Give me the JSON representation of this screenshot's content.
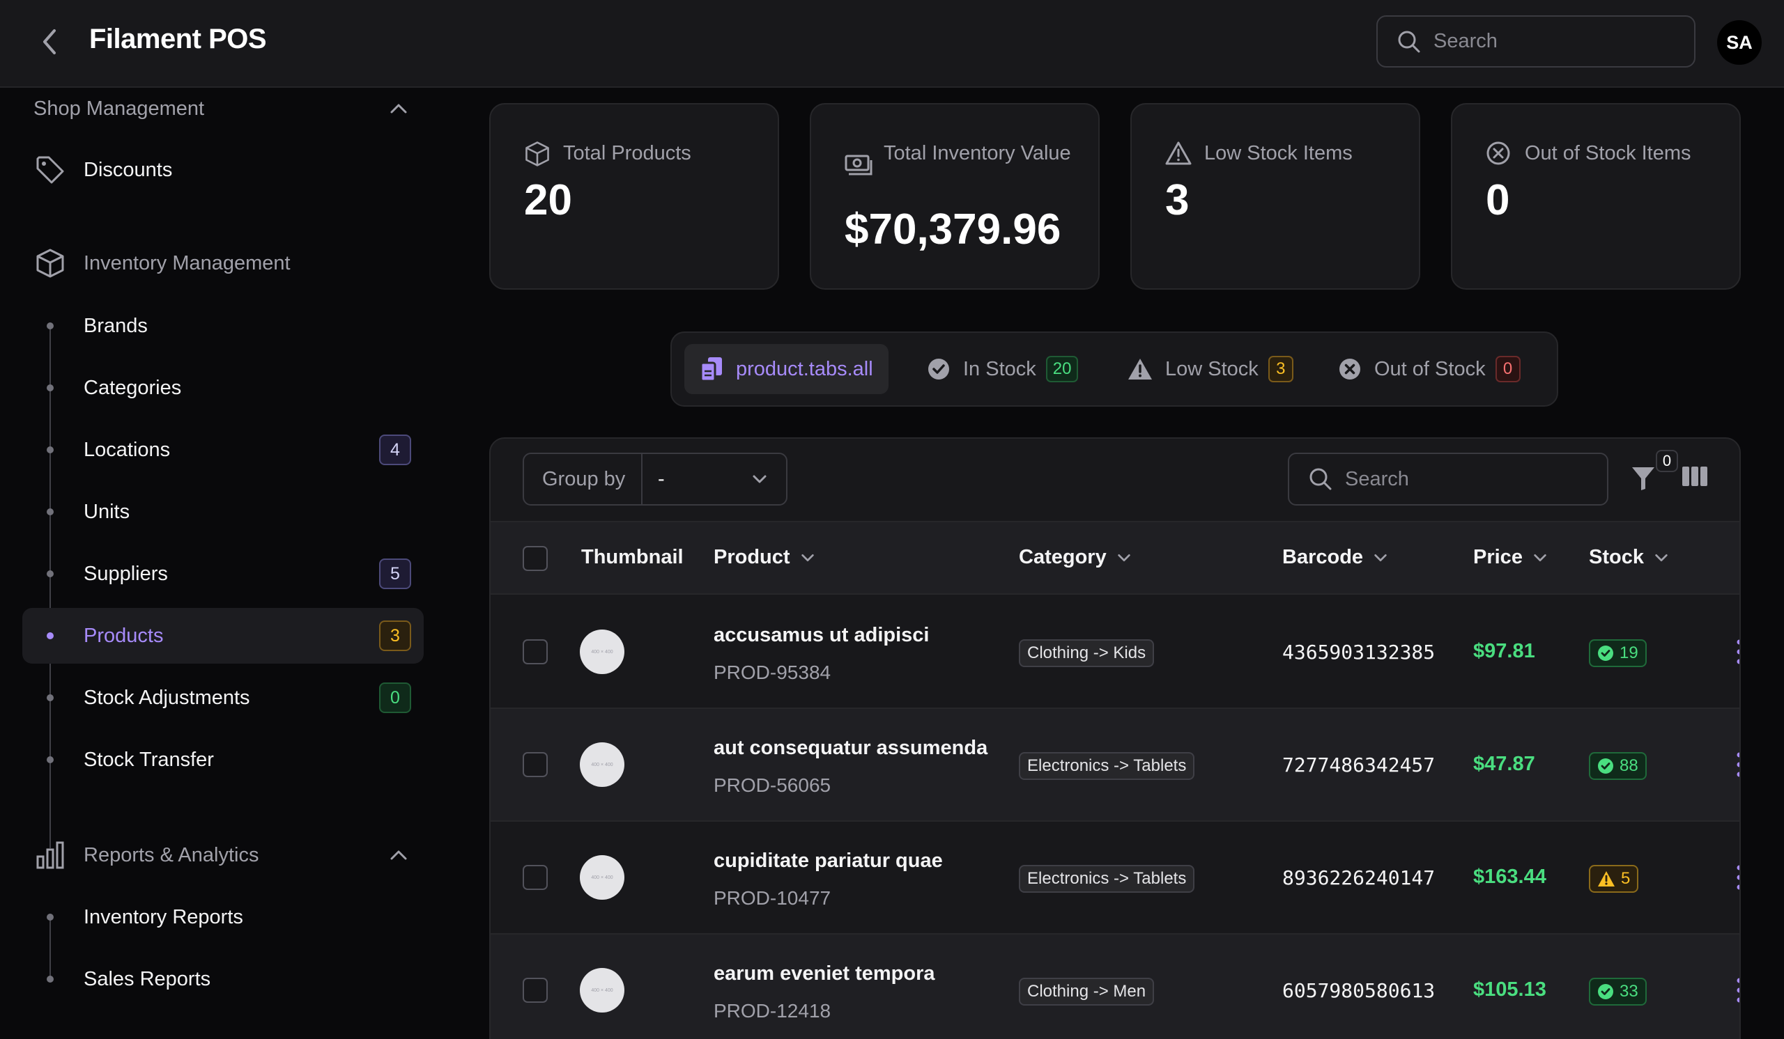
{
  "header": {
    "title": "Filament POS",
    "search_placeholder": "Search",
    "avatar_initials": "SA"
  },
  "sidebar": {
    "shop_group": "Shop Management",
    "discounts": "Discounts",
    "inventory_group": "Inventory Management",
    "items": [
      {
        "label": "Brands"
      },
      {
        "label": "Categories"
      },
      {
        "label": "Locations",
        "badge": "4"
      },
      {
        "label": "Units"
      },
      {
        "label": "Suppliers",
        "badge": "5"
      },
      {
        "label": "Products",
        "badge": "3"
      },
      {
        "label": "Stock Adjustments",
        "badge": "0"
      },
      {
        "label": "Stock Transfer"
      }
    ],
    "reports_group": "Reports & Analytics",
    "reports_items": [
      {
        "label": "Inventory Reports"
      },
      {
        "label": "Sales Reports"
      }
    ]
  },
  "stats": [
    {
      "label": "Total Products",
      "value": "20"
    },
    {
      "label": "Total Inventory Value",
      "value": "$70,379.96"
    },
    {
      "label": "Low Stock Items",
      "value": "3"
    },
    {
      "label": "Out of Stock Items",
      "value": "0"
    }
  ],
  "tabs": [
    {
      "label": "product.tabs.all"
    },
    {
      "label": "In Stock",
      "count": "20"
    },
    {
      "label": "Low Stock",
      "count": "3"
    },
    {
      "label": "Out of Stock",
      "count": "0"
    }
  ],
  "table": {
    "group_by_label": "Group by",
    "group_by_value": "-",
    "search_placeholder": "Search",
    "filter_count": "0",
    "columns": [
      "Thumbnail",
      "Product",
      "Category",
      "Barcode",
      "Price",
      "Stock"
    ],
    "thumb_text": "400 × 400",
    "rows": [
      {
        "name": "accusamus ut adipisci",
        "sku": "PROD-95384",
        "category": "Clothing -> Kids",
        "barcode": "4365903132385",
        "price": "$97.81",
        "stock": "19",
        "stock_status": "ok"
      },
      {
        "name": "aut consequatur assumenda",
        "sku": "PROD-56065",
        "category": "Electronics -> Tablets",
        "barcode": "7277486342457",
        "price": "$47.87",
        "stock": "88",
        "stock_status": "ok"
      },
      {
        "name": "cupiditate pariatur quae",
        "sku": "PROD-10477",
        "category": "Electronics -> Tablets",
        "barcode": "8936226240147",
        "price": "$163.44",
        "stock": "5",
        "stock_status": "low"
      },
      {
        "name": "earum eveniet tempora",
        "sku": "PROD-12418",
        "category": "Clothing -> Men",
        "barcode": "6057980580613",
        "price": "$105.13",
        "stock": "33",
        "stock_status": "ok"
      }
    ]
  },
  "colors": {
    "accent": "#a78bfa",
    "success": "#4ade80",
    "warning": "#fbbf24",
    "danger": "#f87171"
  }
}
